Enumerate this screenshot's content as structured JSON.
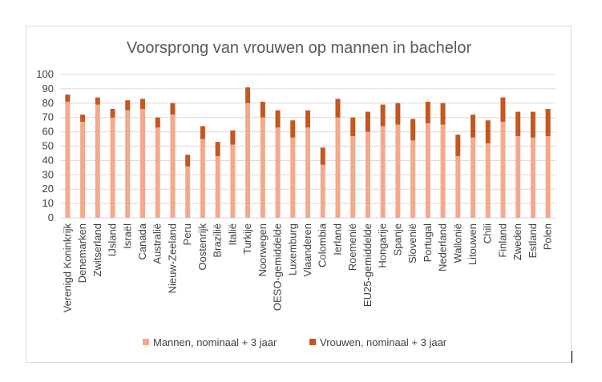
{
  "chart_data": {
    "type": "bar",
    "stacked": true,
    "title": "Voorsprong van vrouwen op mannen in bachelor",
    "xlabel": "",
    "ylabel": "",
    "ylim": [
      0,
      100
    ],
    "yticks": [
      0,
      10,
      20,
      30,
      40,
      50,
      60,
      70,
      80,
      90,
      100
    ],
    "grid": true,
    "legend_position": "bottom",
    "categories": [
      "Verenigd Koninkrijk",
      "Denemarken",
      "Zwitserland",
      "IJsland",
      "Israël",
      "Canada",
      "Australië",
      "Nieuw-Zeeland",
      "Peru",
      "Oostenrijk",
      "Brazilië",
      "Italië",
      "Turkije",
      "Noorwegen",
      "OESO-gemiddelde",
      "Luxemburg",
      "Vlaanderen",
      "Colombia",
      "Ierland",
      "Roemenië",
      "EU25-gemiddelde",
      "Hongarije",
      "Spanje",
      "Slovenië",
      "Portugal",
      "Nederland",
      "Wallonië",
      "Litouwen",
      "Chili",
      "Finland",
      "Zweden",
      "Estland",
      "Polen"
    ],
    "series": [
      {
        "name": "Mannen, nominaal + 3 jaar",
        "color": "#f4a98c",
        "values": [
          81,
          67,
          79,
          70,
          75,
          76,
          63,
          72,
          36,
          55,
          43,
          51,
          80,
          70,
          63,
          56,
          63,
          37,
          70,
          57,
          60,
          64,
          65,
          54,
          66,
          65,
          43,
          56,
          52,
          67,
          57,
          56,
          57
        ]
      },
      {
        "name": "Vrouwen, nominaal + 3 jaar",
        "color": "#c4561f",
        "values": [
          5,
          5,
          5,
          6,
          7,
          7,
          7,
          8,
          8,
          9,
          10,
          10,
          11,
          11,
          12,
          12,
          12,
          12,
          13,
          13,
          14,
          15,
          15,
          15,
          15,
          15,
          15,
          16,
          16,
          17,
          17,
          18,
          19
        ]
      }
    ]
  }
}
